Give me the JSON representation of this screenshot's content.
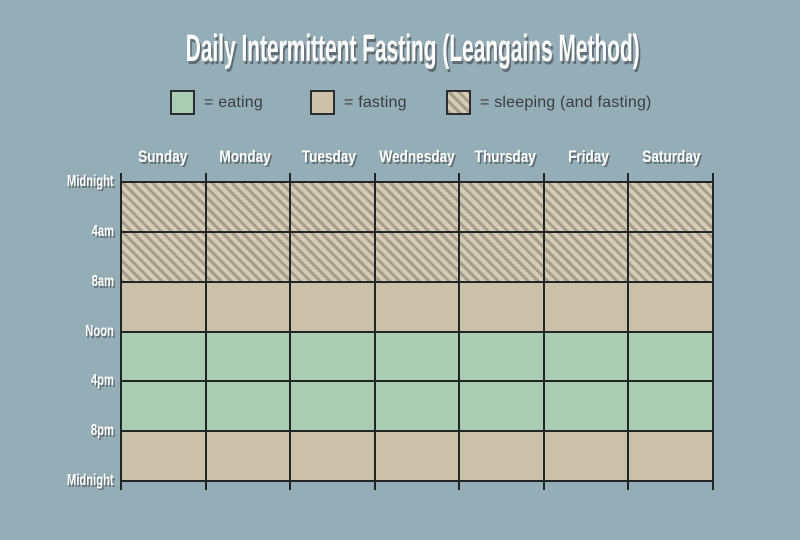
{
  "title": "Daily Intermittent Fasting (Leangains Method)",
  "colors": {
    "background": "#95adb7",
    "eating": "#a9ccb2",
    "fasting": "#cbc1a8",
    "sleeping_base": "#d6ccb4",
    "sleeping_stripe": "#a69e8c",
    "grid_line": "#212526",
    "label_text": "#ffffff",
    "label_shadow": "#5f6d74",
    "legend_text": "#3a3e3e"
  },
  "legend": [
    {
      "state": "eating",
      "label": "= eating"
    },
    {
      "state": "fasting",
      "label": "= fasting"
    },
    {
      "state": "sleeping",
      "label": "= sleeping (and fasting)"
    }
  ],
  "chart_data": {
    "type": "heatmap",
    "title": "Daily Intermittent Fasting (Leangains Method)",
    "columns": [
      "Sunday",
      "Monday",
      "Tuesday",
      "Wednesday",
      "Thursday",
      "Friday",
      "Saturday"
    ],
    "row_ticks": [
      "Midnight",
      "4am",
      "8am",
      "Noon",
      "4pm",
      "8pm",
      "Midnight"
    ],
    "rows": [
      {
        "from": "Midnight",
        "to": "4am",
        "state": "sleeping"
      },
      {
        "from": "4am",
        "to": "8am",
        "state": "sleeping"
      },
      {
        "from": "8am",
        "to": "Noon",
        "state": "fasting"
      },
      {
        "from": "Noon",
        "to": "4pm",
        "state": "eating"
      },
      {
        "from": "4pm",
        "to": "8pm",
        "state": "eating"
      },
      {
        "from": "8pm",
        "to": "Midnight",
        "state": "fasting"
      }
    ],
    "legend_entries": [
      "= eating",
      "= fasting",
      "= sleeping (and fasting)"
    ],
    "layout": {
      "grid": true,
      "legend_position": "top",
      "x_axis": "days",
      "y_axis": "time-of-day"
    }
  }
}
